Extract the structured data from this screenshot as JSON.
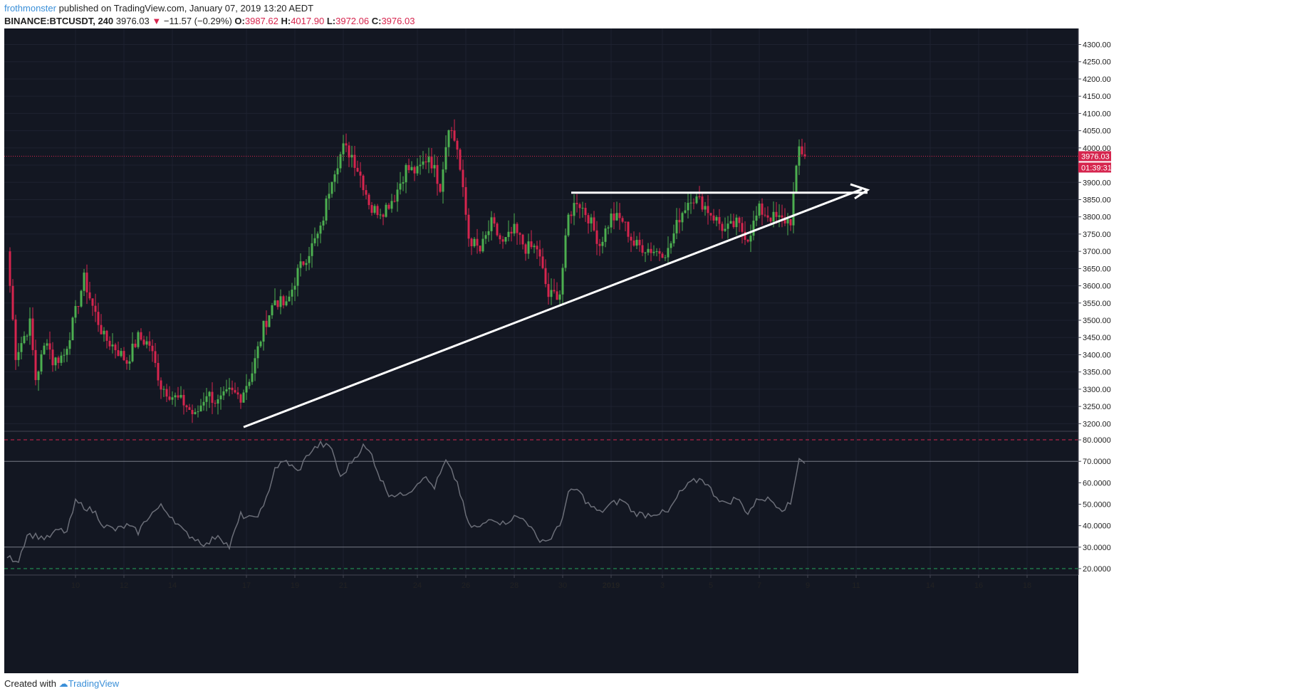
{
  "header": {
    "author": "frothmonster",
    "published": "published on TradingView.com, January 07, 2019 13:20 AEDT",
    "symbol": "BINANCE:BTCUSDT, 240",
    "last": "3976.03",
    "change_arrow": "▼",
    "change": "−11.57 (−0.29%)",
    "o_label": "O:",
    "o": "3987.62",
    "h_label": "H:",
    "h": "4017.90",
    "l_label": "L:",
    "l": "3972.06",
    "c_label": "C:",
    "c": "3976.03"
  },
  "footer": {
    "created": "Created with",
    "brand": "TradingView"
  },
  "colors": {
    "background": "#131722",
    "up": "#26a69a",
    "up_candle": "#4caf50",
    "down": "#d6254e",
    "grid": "#1e2230",
    "rsi_line": "#6b6e78",
    "trendline": "#ffffff",
    "price_line": "#d6254e",
    "rsi_upper": "#d6254e",
    "rsi_lower": "#26a65a"
  },
  "chart_data": [
    {
      "type": "candlestick",
      "title": "BINANCE:BTCUSDT, 240",
      "ylim": [
        3180,
        4330
      ],
      "y_ticks": [
        "3200.00",
        "3250.00",
        "3300.00",
        "3350.00",
        "3400.00",
        "3450.00",
        "3500.00",
        "3550.00",
        "3600.00",
        "3650.00",
        "3700.00",
        "3750.00",
        "3800.00",
        "3850.00",
        "3900.00",
        "3950.00",
        "4000.00",
        "4050.00",
        "4100.00",
        "4150.00",
        "4200.00",
        "4250.00",
        "4300.00"
      ],
      "x_ticks": [
        "10",
        "12",
        "14",
        "17",
        "19",
        "21",
        "24",
        "26",
        "28",
        "30",
        "2019",
        "3",
        "5",
        "7",
        "9",
        "11",
        "14",
        "16",
        "18"
      ],
      "last_price_label": "3976.03",
      "countdown_label": "01:39:31",
      "last_price": 3976.03,
      "anchor_closes": [
        [
          0,
          3700
        ],
        [
          3,
          3400
        ],
        [
          8,
          3490
        ],
        [
          10,
          3330
        ],
        [
          14,
          3450
        ],
        [
          16,
          3380
        ],
        [
          20,
          3400
        ],
        [
          23,
          3490
        ],
        [
          27,
          3620
        ],
        [
          30,
          3540
        ],
        [
          34,
          3450
        ],
        [
          38,
          3420
        ],
        [
          42,
          3380
        ],
        [
          46,
          3450
        ],
        [
          50,
          3430
        ],
        [
          54,
          3310
        ],
        [
          58,
          3280
        ],
        [
          62,
          3260
        ],
        [
          66,
          3220
        ],
        [
          70,
          3290
        ],
        [
          74,
          3260
        ],
        [
          78,
          3290
        ],
        [
          82,
          3280
        ],
        [
          86,
          3350
        ],
        [
          90,
          3480
        ],
        [
          94,
          3560
        ],
        [
          98,
          3540
        ],
        [
          102,
          3640
        ],
        [
          106,
          3700
        ],
        [
          110,
          3760
        ],
        [
          114,
          3920
        ],
        [
          118,
          4000
        ],
        [
          121,
          3980
        ],
        [
          124,
          3920
        ],
        [
          128,
          3820
        ],
        [
          132,
          3820
        ],
        [
          136,
          3860
        ],
        [
          140,
          3940
        ],
        [
          144,
          3930
        ],
        [
          148,
          3980
        ],
        [
          152,
          3890
        ],
        [
          155,
          4070
        ],
        [
          158,
          4000
        ],
        [
          162,
          3740
        ],
        [
          166,
          3700
        ],
        [
          170,
          3780
        ],
        [
          174,
          3720
        ],
        [
          178,
          3760
        ],
        [
          182,
          3710
        ],
        [
          186,
          3710
        ],
        [
          190,
          3570
        ],
        [
          194,
          3580
        ],
        [
          197,
          3800
        ],
        [
          200,
          3850
        ],
        [
          204,
          3800
        ],
        [
          208,
          3720
        ],
        [
          212,
          3800
        ],
        [
          216,
          3790
        ],
        [
          220,
          3720
        ],
        [
          224,
          3710
        ],
        [
          228,
          3700
        ],
        [
          232,
          3700
        ],
        [
          236,
          3800
        ],
        [
          240,
          3860
        ],
        [
          244,
          3840
        ],
        [
          248,
          3800
        ],
        [
          252,
          3760
        ],
        [
          256,
          3780
        ],
        [
          260,
          3740
        ],
        [
          264,
          3820
        ],
        [
          268,
          3800
        ],
        [
          272,
          3790
        ],
        [
          275,
          3790
        ],
        [
          278,
          4000
        ],
        [
          280,
          3976
        ]
      ],
      "candle_count": 281,
      "annotations": {
        "ascending_trendline": [
          [
            83,
            3190
          ],
          [
            300,
            3880
          ]
        ],
        "horizontal_resistance": [
          [
            198,
            3870
          ],
          [
            302,
            3870
          ]
        ],
        "arrow_head_at": [
          [
            300,
            3880
          ],
          [
            302,
            3870
          ]
        ]
      }
    },
    {
      "type": "line",
      "title": "RSI",
      "ylim": [
        17,
        84
      ],
      "y_ticks": [
        "20.0000",
        "30.0000",
        "40.0000",
        "50.0000",
        "60.0000",
        "70.0000",
        "80.0000"
      ],
      "levels": {
        "upper_dashed": 80,
        "upper": 70,
        "lower": 30,
        "lower_dashed": 20
      },
      "anchor_points": [
        [
          0,
          25
        ],
        [
          4,
          24
        ],
        [
          7,
          36
        ],
        [
          11,
          35
        ],
        [
          14,
          34
        ],
        [
          18,
          38
        ],
        [
          21,
          37
        ],
        [
          24,
          51
        ],
        [
          27,
          49
        ],
        [
          31,
          46
        ],
        [
          34,
          40
        ],
        [
          38,
          38
        ],
        [
          42,
          40
        ],
        [
          46,
          37
        ],
        [
          50,
          45
        ],
        [
          54,
          49
        ],
        [
          58,
          44
        ],
        [
          62,
          37
        ],
        [
          66,
          34
        ],
        [
          70,
          31
        ],
        [
          74,
          36
        ],
        [
          78,
          30
        ],
        [
          82,
          45
        ],
        [
          86,
          43
        ],
        [
          90,
          48
        ],
        [
          94,
          67
        ],
        [
          98,
          70
        ],
        [
          102,
          65
        ],
        [
          106,
          74
        ],
        [
          110,
          78
        ],
        [
          114,
          76
        ],
        [
          117,
          62
        ],
        [
          121,
          70
        ],
        [
          125,
          77
        ],
        [
          128,
          73
        ],
        [
          131,
          62
        ],
        [
          134,
          55
        ],
        [
          138,
          54
        ],
        [
          142,
          57
        ],
        [
          146,
          63
        ],
        [
          150,
          58
        ],
        [
          154,
          70
        ],
        [
          158,
          60
        ],
        [
          162,
          40
        ],
        [
          166,
          39
        ],
        [
          170,
          44
        ],
        [
          174,
          41
        ],
        [
          178,
          44
        ],
        [
          182,
          43
        ],
        [
          186,
          34
        ],
        [
          190,
          33
        ],
        [
          194,
          40
        ],
        [
          197,
          55
        ],
        [
          200,
          57
        ],
        [
          204,
          50
        ],
        [
          208,
          46
        ],
        [
          212,
          50
        ],
        [
          216,
          52
        ],
        [
          220,
          46
        ],
        [
          224,
          45
        ],
        [
          228,
          46
        ],
        [
          232,
          46
        ],
        [
          236,
          55
        ],
        [
          240,
          60
        ],
        [
          244,
          62
        ],
        [
          248,
          55
        ],
        [
          252,
          50
        ],
        [
          256,
          53
        ],
        [
          260,
          46
        ],
        [
          264,
          53
        ],
        [
          268,
          52
        ],
        [
          272,
          48
        ],
        [
          275,
          50
        ],
        [
          278,
          72
        ],
        [
          280,
          69
        ]
      ]
    }
  ]
}
